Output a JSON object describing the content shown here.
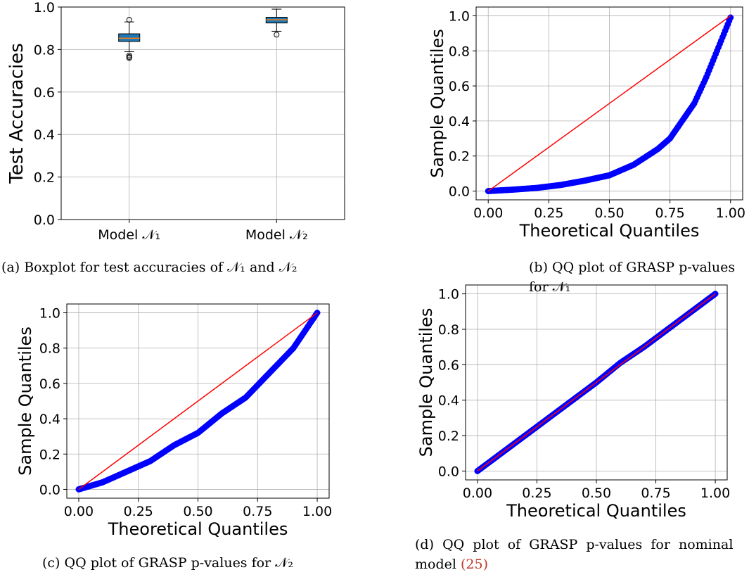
{
  "captions": {
    "a": "(a) Boxplot for test accuracies of 𝒩₁ and 𝒩₂",
    "b": "(b) QQ plot of GRASP p-values for 𝒩₁",
    "c": "(c) QQ plot of GRASP p-values for 𝒩₂",
    "d_line1": "(d)  QQ  plot  of  GRASP  p-values  for  nominal",
    "d_line2_prefix": "model ",
    "d_cite": "(25)"
  },
  "colors": {
    "points": "#0000ff",
    "reference_line": "#ff0000",
    "box_fill": "#1f77b4",
    "median": "#ff7f0e"
  },
  "chart_data": [
    {
      "id": "a",
      "type": "box",
      "categories": [
        "Model 𝒩₁",
        "Model 𝒩₂"
      ],
      "ylabel": "Test Accuracies",
      "xlabel": "",
      "ylim": [
        0,
        1.0
      ],
      "yticks": [
        "0.0",
        "0.2",
        "0.4",
        "0.6",
        "0.8",
        "1.0"
      ],
      "grid": true,
      "boxes": [
        {
          "name": "Model 𝒩₁",
          "whisker_low": 0.79,
          "q1": 0.838,
          "median": 0.853,
          "q3": 0.874,
          "whisker_high": 0.93,
          "outliers": [
            0.94,
            0.772,
            0.765,
            0.76
          ]
        },
        {
          "name": "Model 𝒩₂",
          "whisker_low": 0.886,
          "q1": 0.925,
          "median": 0.94,
          "q3": 0.952,
          "whisker_high": 0.99,
          "outliers": [
            0.87
          ]
        }
      ]
    },
    {
      "id": "b",
      "type": "scatter",
      "xlabel": "Theoretical Quantiles",
      "ylabel": "Sample Quantiles",
      "xlim": [
        0,
        1
      ],
      "ylim": [
        0,
        1
      ],
      "xticks": [
        "0.00",
        "0.25",
        "0.50",
        "0.75",
        "1.00"
      ],
      "yticks": [
        "0.0",
        "0.2",
        "0.4",
        "0.6",
        "0.8",
        "1.0"
      ],
      "grid": true,
      "reference_line": [
        [
          0,
          0
        ],
        [
          1,
          1
        ]
      ],
      "curve": [
        [
          0,
          0
        ],
        [
          0.1,
          0.008
        ],
        [
          0.2,
          0.018
        ],
        [
          0.3,
          0.035
        ],
        [
          0.4,
          0.06
        ],
        [
          0.5,
          0.09
        ],
        [
          0.6,
          0.15
        ],
        [
          0.7,
          0.24
        ],
        [
          0.75,
          0.3
        ],
        [
          0.8,
          0.4
        ],
        [
          0.85,
          0.5
        ],
        [
          0.9,
          0.65
        ],
        [
          0.95,
          0.82
        ],
        [
          1.0,
          0.99
        ]
      ]
    },
    {
      "id": "c",
      "type": "scatter",
      "xlabel": "Theoretical Quantiles",
      "ylabel": "Sample Quantiles",
      "xlim": [
        0,
        1
      ],
      "ylim": [
        0,
        1
      ],
      "xticks": [
        "0.00",
        "0.25",
        "0.50",
        "0.75",
        "1.00"
      ],
      "yticks": [
        "0.0",
        "0.2",
        "0.4",
        "0.6",
        "0.8",
        "1.0"
      ],
      "grid": true,
      "reference_line": [
        [
          0,
          0
        ],
        [
          1,
          1
        ]
      ],
      "curve": [
        [
          0,
          0
        ],
        [
          0.1,
          0.04
        ],
        [
          0.2,
          0.1
        ],
        [
          0.3,
          0.16
        ],
        [
          0.4,
          0.25
        ],
        [
          0.5,
          0.32
        ],
        [
          0.6,
          0.43
        ],
        [
          0.7,
          0.52
        ],
        [
          0.8,
          0.66
        ],
        [
          0.9,
          0.8
        ],
        [
          0.95,
          0.9
        ],
        [
          1.0,
          1.0
        ]
      ]
    },
    {
      "id": "d",
      "type": "scatter",
      "xlabel": "Theoretical Quantiles",
      "ylabel": "Sample Quantiles",
      "xlim": [
        0,
        1
      ],
      "ylim": [
        0,
        1
      ],
      "xticks": [
        "0.00",
        "0.25",
        "0.50",
        "0.75",
        "1.00"
      ],
      "yticks": [
        "0.0",
        "0.2",
        "0.4",
        "0.6",
        "0.8",
        "1.0"
      ],
      "grid": true,
      "reference_line": [
        [
          0,
          0
        ],
        [
          1,
          1
        ]
      ],
      "curve": [
        [
          0,
          0
        ],
        [
          0.1,
          0.1
        ],
        [
          0.2,
          0.2
        ],
        [
          0.3,
          0.3
        ],
        [
          0.4,
          0.4
        ],
        [
          0.5,
          0.5
        ],
        [
          0.6,
          0.61
        ],
        [
          0.7,
          0.7
        ],
        [
          0.8,
          0.8
        ],
        [
          0.9,
          0.9
        ],
        [
          1.0,
          1.0
        ]
      ]
    }
  ]
}
